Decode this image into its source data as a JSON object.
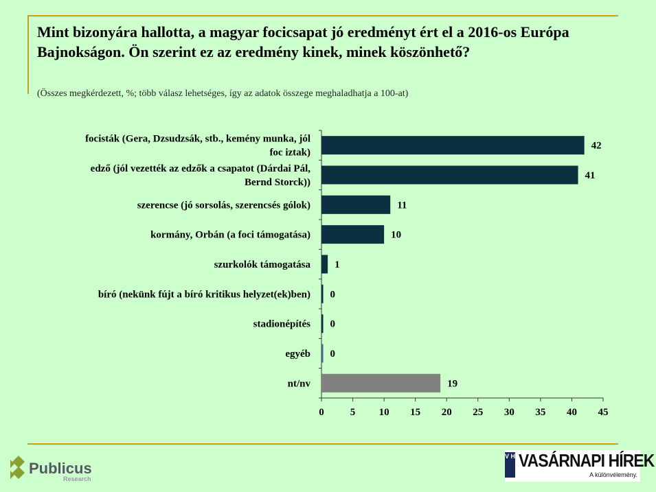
{
  "title": "Mint bizonyára hallotta, a magyar focicsapat jó eredményt ért el a 2016-os Európa Bajnokságon. Ön szerint ez az eredmény kinek, minek köszönhető?",
  "subtitle": "(Összes megkérdezett, %; több válasz lehetséges, így az adatok összege meghaladhatja a 100-at)",
  "chart_data": {
    "type": "bar",
    "orientation": "horizontal",
    "categories": [
      [
        "focisták (Gera, Dzsudzsák, stb., kemény munka, jól",
        "foc iztak)"
      ],
      [
        "edző (jól vezették az edzők a csapatot (Dárdai Pál,",
        "Bernd Storck))"
      ],
      [
        "szerencse (jó sorsolás, szerencsés gólok)"
      ],
      [
        "kormány, Orbán (a foci támogatása)"
      ],
      [
        "szurkolók támogatása"
      ],
      [
        "bíró (nekünk fújt a bíró kritikus helyzet(ek)ben)"
      ],
      [
        "stadionépítés"
      ],
      [
        "egyéb"
      ],
      [
        "nt/nv"
      ]
    ],
    "values": [
      42,
      41,
      11,
      10,
      1,
      0,
      0,
      0,
      19
    ],
    "bar_colors": [
      "#0d3040",
      "#0d3040",
      "#0d3040",
      "#0d3040",
      "#0d3040",
      "#0d3040",
      "#0d3040",
      "#3a6a90",
      "#808080"
    ],
    "xlim": [
      0,
      45
    ],
    "xticks": [
      0,
      5,
      10,
      15,
      20,
      25,
      30,
      35,
      40,
      45
    ]
  },
  "footer": {
    "left_logo": "Publicus",
    "left_logo_sub": "Research",
    "right_badge": "V H",
    "right_logo": "VASÁRNAPI HÍREK",
    "right_slogan": "A különvélemény."
  }
}
